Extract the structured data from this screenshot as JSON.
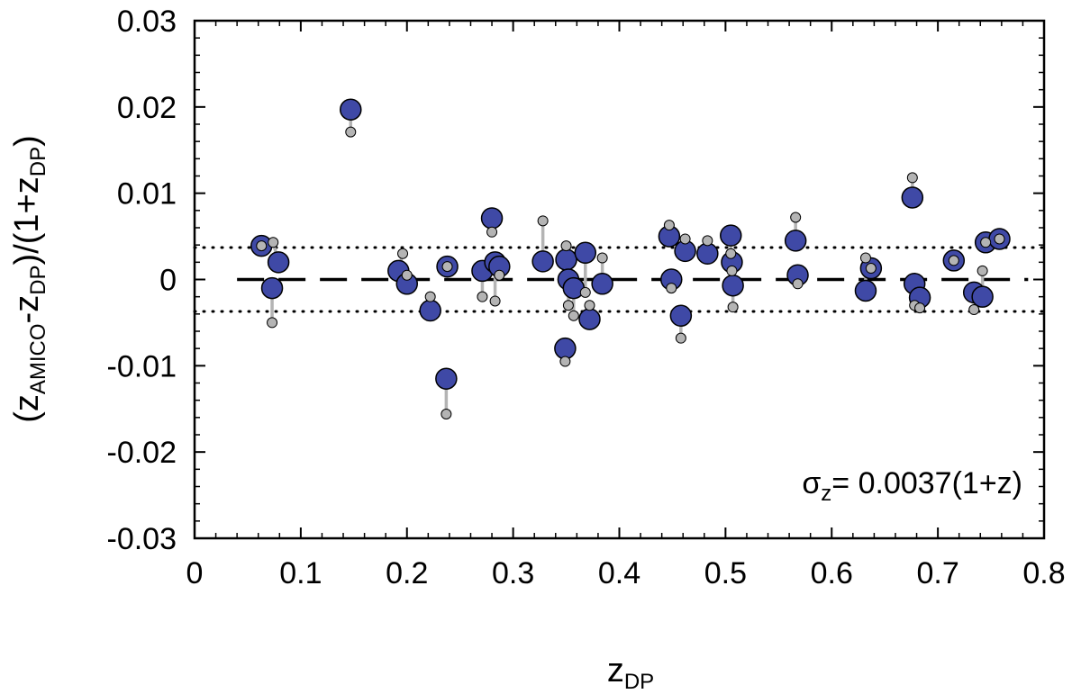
{
  "chart_data": {
    "type": "scatter",
    "title": "",
    "xlabel": {
      "main": "z",
      "sub": "DP"
    },
    "ylabel": {
      "parts": [
        {
          "t": "(z",
          "sub": false
        },
        {
          "t": "AMICO",
          "sub": true
        },
        {
          "t": "-z",
          "sub": false
        },
        {
          "t": "DP",
          "sub": true
        },
        {
          "t": ")/(1+z",
          "sub": false
        },
        {
          "t": "DP",
          "sub": true
        },
        {
          "t": ")",
          "sub": false
        }
      ]
    },
    "xlim": [
      0,
      0.8
    ],
    "ylim": [
      -0.03,
      0.03
    ],
    "xticks": [
      0,
      0.1,
      0.2,
      0.3,
      0.4,
      0.5,
      0.6,
      0.7,
      0.8
    ],
    "xtick_labels": [
      "0",
      "0.1",
      "0.2",
      "0.3",
      "0.4",
      "0.5",
      "0.6",
      "0.7",
      "0.8"
    ],
    "yticks": [
      -0.03,
      -0.02,
      -0.01,
      0,
      0.01,
      0.02,
      0.03
    ],
    "ytick_labels": [
      "-0.03",
      "-0.02",
      "-0.01",
      "0",
      "0.01",
      "0.02",
      "0.03"
    ],
    "grid": false,
    "reference_lines": {
      "zero": 0,
      "sigma": 0.0037
    },
    "annotation": {
      "prefix": "σ",
      "sub": "z",
      "suffix": "= 0.0037(1+z)"
    },
    "colors": {
      "main": "#3f49a6",
      "secondary": "#b4b4b4",
      "connector": "#b4b4b4"
    },
    "series": [
      {
        "marker": "large blue circle",
        "points": [
          {
            "x": 0.063,
            "y": 0.0039
          },
          {
            "x": 0.073,
            "y": -0.001
          },
          {
            "x": 0.079,
            "y": 0.002
          },
          {
            "x": 0.147,
            "y": 0.0197
          },
          {
            "x": 0.192,
            "y": 0.001
          },
          {
            "x": 0.2,
            "y": -0.0005
          },
          {
            "x": 0.222,
            "y": -0.0036
          },
          {
            "x": 0.237,
            "y": -0.0115
          },
          {
            "x": 0.238,
            "y": 0.0015
          },
          {
            "x": 0.271,
            "y": 0.001
          },
          {
            "x": 0.28,
            "y": 0.0071
          },
          {
            "x": 0.283,
            "y": 0.002
          },
          {
            "x": 0.287,
            "y": 0.0015
          },
          {
            "x": 0.328,
            "y": 0.0021
          },
          {
            "x": 0.349,
            "y": -0.008
          },
          {
            "x": 0.35,
            "y": 0.0023
          },
          {
            "x": 0.352,
            "y": 0.0
          },
          {
            "x": 0.357,
            "y": -0.001
          },
          {
            "x": 0.368,
            "y": 0.0031
          },
          {
            "x": 0.372,
            "y": -0.0046
          },
          {
            "x": 0.384,
            "y": -0.0005
          },
          {
            "x": 0.447,
            "y": 0.005
          },
          {
            "x": 0.449,
            "y": 0.0
          },
          {
            "x": 0.458,
            "y": -0.0042
          },
          {
            "x": 0.462,
            "y": 0.0033
          },
          {
            "x": 0.483,
            "y": 0.003
          },
          {
            "x": 0.505,
            "y": 0.0051
          },
          {
            "x": 0.506,
            "y": 0.002
          },
          {
            "x": 0.507,
            "y": -0.0007
          },
          {
            "x": 0.566,
            "y": 0.0045
          },
          {
            "x": 0.568,
            "y": 0.0005
          },
          {
            "x": 0.632,
            "y": -0.0013
          },
          {
            "x": 0.637,
            "y": 0.0013
          },
          {
            "x": 0.676,
            "y": 0.0095
          },
          {
            "x": 0.678,
            "y": -0.0005
          },
          {
            "x": 0.683,
            "y": -0.0021
          },
          {
            "x": 0.715,
            "y": 0.0022
          },
          {
            "x": 0.734,
            "y": -0.0015
          },
          {
            "x": 0.742,
            "y": -0.002
          },
          {
            "x": 0.745,
            "y": 0.0043
          },
          {
            "x": 0.758,
            "y": 0.0047
          }
        ]
      },
      {
        "marker": "small grey circle",
        "points": [
          {
            "x": 0.063,
            "y": 0.0039
          },
          {
            "x": 0.073,
            "y": -0.005
          },
          {
            "x": 0.074,
            "y": 0.0043
          },
          {
            "x": 0.147,
            "y": 0.0171
          },
          {
            "x": 0.196,
            "y": 0.003
          },
          {
            "x": 0.2,
            "y": 0.0005
          },
          {
            "x": 0.222,
            "y": -0.002
          },
          {
            "x": 0.237,
            "y": -0.0156
          },
          {
            "x": 0.238,
            "y": 0.0015
          },
          {
            "x": 0.271,
            "y": -0.002
          },
          {
            "x": 0.28,
            "y": 0.0055
          },
          {
            "x": 0.283,
            "y": -0.0025
          },
          {
            "x": 0.287,
            "y": 0.0005
          },
          {
            "x": 0.328,
            "y": 0.0068
          },
          {
            "x": 0.349,
            "y": -0.0095
          },
          {
            "x": 0.35,
            "y": 0.0039
          },
          {
            "x": 0.352,
            "y": -0.003
          },
          {
            "x": 0.357,
            "y": -0.0042
          },
          {
            "x": 0.368,
            "y": -0.0015
          },
          {
            "x": 0.372,
            "y": -0.003
          },
          {
            "x": 0.384,
            "y": 0.0025
          },
          {
            "x": 0.447,
            "y": 0.0063
          },
          {
            "x": 0.449,
            "y": -0.001
          },
          {
            "x": 0.458,
            "y": -0.0068
          },
          {
            "x": 0.462,
            "y": 0.0047
          },
          {
            "x": 0.483,
            "y": 0.0045
          },
          {
            "x": 0.505,
            "y": 0.003
          },
          {
            "x": 0.506,
            "y": 0.001
          },
          {
            "x": 0.507,
            "y": -0.0032
          },
          {
            "x": 0.566,
            "y": 0.0072
          },
          {
            "x": 0.568,
            "y": -0.0005
          },
          {
            "x": 0.632,
            "y": 0.0025
          },
          {
            "x": 0.637,
            "y": 0.0013
          },
          {
            "x": 0.676,
            "y": 0.0118
          },
          {
            "x": 0.678,
            "y": -0.003
          },
          {
            "x": 0.683,
            "y": -0.0033
          },
          {
            "x": 0.715,
            "y": 0.0022
          },
          {
            "x": 0.734,
            "y": -0.0035
          },
          {
            "x": 0.742,
            "y": 0.001
          },
          {
            "x": 0.745,
            "y": 0.0043
          },
          {
            "x": 0.758,
            "y": 0.0047
          }
        ]
      }
    ]
  }
}
